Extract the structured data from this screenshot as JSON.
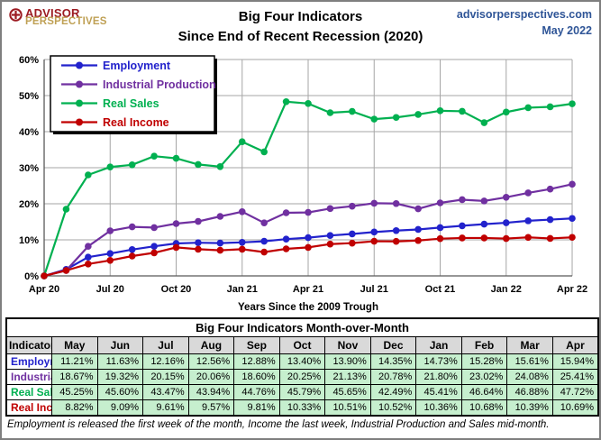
{
  "header": {
    "logo_line1": "ADVISOR",
    "logo_line2": "PERSPECTIVES",
    "title_line1": "Big Four Indicators",
    "title_line2": "Since  End of Recent Recession (2020)",
    "site": "advisorperspectives.com",
    "date": "May 2022"
  },
  "chart_data": {
    "type": "line",
    "title": "Big Four Indicators Since End of Recent Recession (2020)",
    "xlabel": "Years Since the 2009 Trough",
    "ylabel": "",
    "ylim": [
      0,
      60
    ],
    "grid": true,
    "legend_position": "top-left",
    "y_ticks": [
      "0%",
      "10%",
      "20%",
      "30%",
      "40%",
      "50%",
      "60%"
    ],
    "x_ticks": [
      "Apr 20",
      "Jul 20",
      "Oct 20",
      "Jan 21",
      "Apr 21",
      "Jul 21",
      "Oct 21",
      "Jan 22",
      "Apr 22"
    ],
    "x": [
      "Apr 20",
      "May 20",
      "Jun 20",
      "Jul 20",
      "Aug 20",
      "Sep 20",
      "Oct 20",
      "Nov 20",
      "Dec 20",
      "Jan 21",
      "Feb 21",
      "Mar 21",
      "Apr 21",
      "May 21",
      "Jun 21",
      "Jul 21",
      "Aug 21",
      "Sep 21",
      "Oct 21",
      "Nov 21",
      "Dec 21",
      "Jan 22",
      "Feb 22",
      "Mar 22",
      "Apr 22"
    ],
    "series": [
      {
        "name": "Employment",
        "color": "#2222cc",
        "values": [
          0,
          1.8,
          5.2,
          6.2,
          7.3,
          8.2,
          9.0,
          9.2,
          9.1,
          9.3,
          9.6,
          10.2,
          10.6,
          11.21,
          11.63,
          12.16,
          12.56,
          12.88,
          13.4,
          13.9,
          14.35,
          14.73,
          15.28,
          15.61,
          15.94
        ]
      },
      {
        "name": "Industrial Production",
        "color": "#7030a0",
        "values": [
          0,
          1.5,
          8.2,
          12.5,
          13.6,
          13.4,
          14.5,
          15.1,
          16.5,
          17.8,
          14.7,
          17.5,
          17.6,
          18.67,
          19.32,
          20.15,
          20.06,
          18.6,
          20.25,
          21.13,
          20.78,
          21.8,
          23.02,
          24.08,
          25.41
        ]
      },
      {
        "name": "Real Sales",
        "color": "#00b050",
        "values": [
          0,
          18.5,
          28.0,
          30.2,
          30.8,
          33.2,
          32.6,
          30.9,
          30.3,
          37.2,
          34.4,
          48.3,
          47.8,
          45.25,
          45.6,
          43.47,
          43.94,
          44.76,
          45.79,
          45.65,
          42.49,
          45.41,
          46.64,
          46.88,
          47.72
        ]
      },
      {
        "name": "Real Income",
        "color": "#c00000",
        "values": [
          0,
          1.5,
          3.3,
          4.3,
          5.5,
          6.4,
          7.9,
          7.4,
          7.1,
          7.4,
          6.6,
          7.5,
          7.9,
          8.82,
          9.09,
          9.61,
          9.57,
          9.81,
          10.33,
          10.51,
          10.52,
          10.36,
          10.68,
          10.39,
          10.69
        ]
      }
    ]
  },
  "table": {
    "title": "Big Four Indicators Month-over-Month",
    "columns": [
      "Indicator",
      "May",
      "Jun",
      "Jul",
      "Aug",
      "Sep",
      "Oct",
      "Nov",
      "Dec",
      "Jan",
      "Feb",
      "Mar",
      "Apr"
    ],
    "rows": [
      {
        "label": "Employment",
        "color": "#2222cc",
        "values": [
          "11.21%",
          "11.63%",
          "12.16%",
          "12.56%",
          "12.88%",
          "13.40%",
          "13.90%",
          "14.35%",
          "14.73%",
          "15.28%",
          "15.61%",
          "15.94%"
        ]
      },
      {
        "label": "Industrial Production",
        "color": "#7030a0",
        "values": [
          "18.67%",
          "19.32%",
          "20.15%",
          "20.06%",
          "18.60%",
          "20.25%",
          "21.13%",
          "20.78%",
          "21.80%",
          "23.02%",
          "24.08%",
          "25.41%"
        ]
      },
      {
        "label": "Real Sales",
        "color": "#00b050",
        "values": [
          "45.25%",
          "45.60%",
          "43.47%",
          "43.94%",
          "44.76%",
          "45.79%",
          "45.65%",
          "42.49%",
          "45.41%",
          "46.64%",
          "46.88%",
          "47.72%"
        ]
      },
      {
        "label": "Real Income",
        "color": "#c00000",
        "values": [
          "8.82%",
          "9.09%",
          "9.61%",
          "9.57%",
          "9.81%",
          "10.33%",
          "10.51%",
          "10.52%",
          "10.36%",
          "10.68%",
          "10.39%",
          "10.69%"
        ]
      }
    ]
  },
  "footnote": "Employment is released the first week of the month, Income the last week, Industrial Production and Sales mid-month.",
  "colors": {
    "employment": "#2222cc",
    "industrial_production": "#7030a0",
    "real_sales": "#00b050",
    "real_income": "#c00000",
    "header_blue": "#2f5597",
    "logo_red": "#9c1b22",
    "logo_gold": "#bfa054",
    "cell_green": "#c6efce",
    "head_gray": "#d9d9d9",
    "gridline": "#a6a6a6"
  }
}
